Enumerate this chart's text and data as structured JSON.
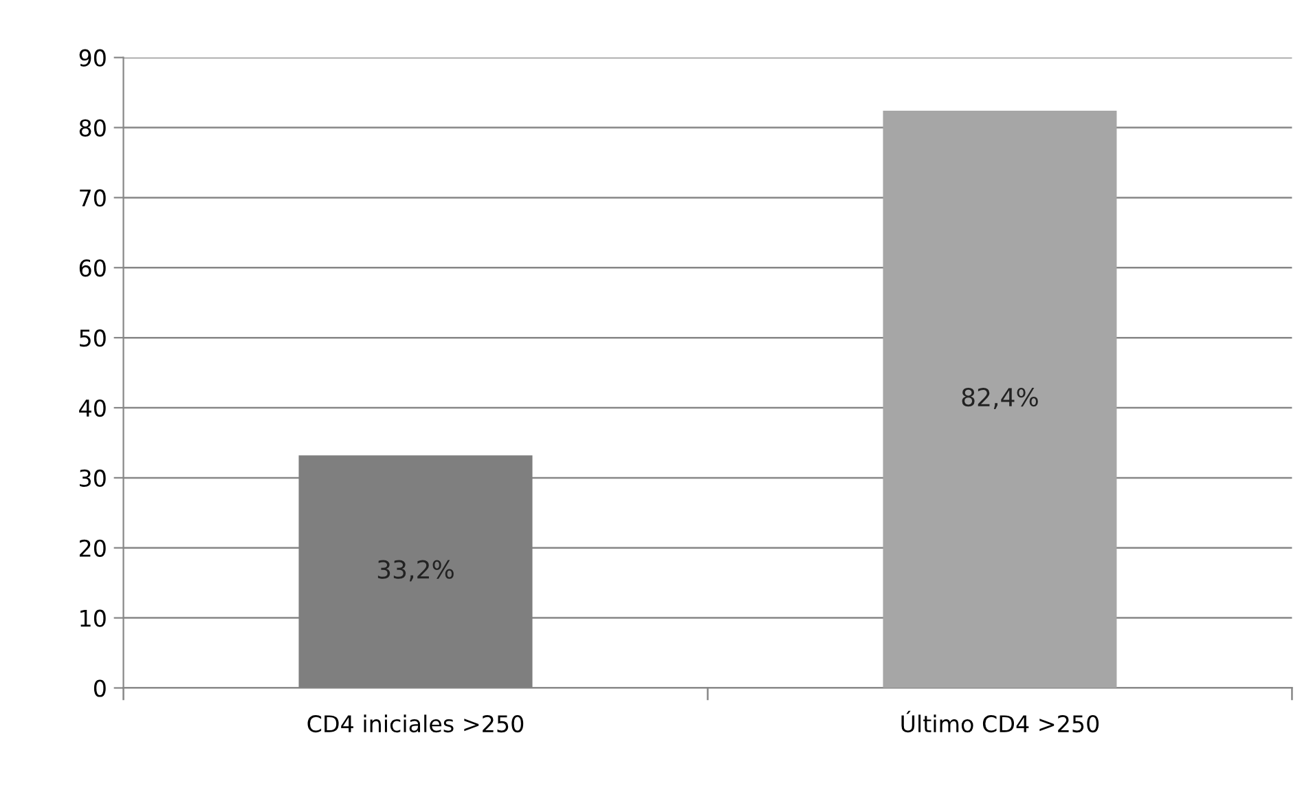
{
  "chart_data": {
    "type": "bar",
    "categories": [
      "CD4 iniciales >250",
      "Último CD4 >250"
    ],
    "values": [
      33.2,
      82.4
    ],
    "colors": [
      "#7f7f7f",
      "#a6a6a6"
    ],
    "value_labels": [
      "33,2%",
      "82,4%"
    ],
    "ylim": [
      0,
      90
    ],
    "yticks": [
      0,
      10,
      20,
      30,
      40,
      50,
      60,
      70,
      80,
      90
    ],
    "grid": "y",
    "legend": false
  }
}
